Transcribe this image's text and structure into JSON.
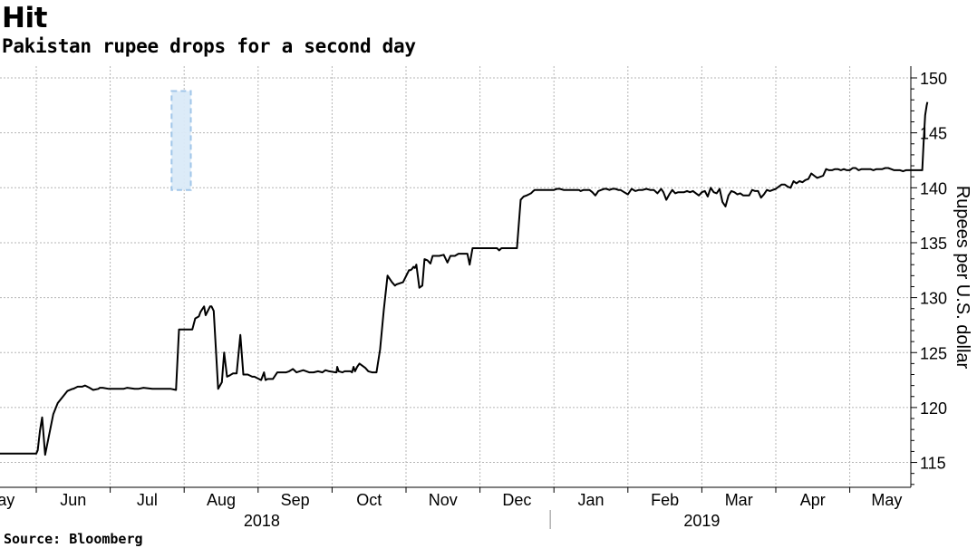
{
  "title": "Hit",
  "subtitle": "Pakistan rupee drops for a second day",
  "source": "Source: Bloomberg",
  "chart_data": {
    "type": "line",
    "title": "Hit",
    "subtitle": "Pakistan rupee drops for a second day",
    "ylabel": "Rupees per U.S. dollar",
    "xlabel": "",
    "ylim": [
      112.5,
      151
    ],
    "yticks": [
      115,
      120,
      125,
      130,
      135,
      140,
      145,
      150
    ],
    "grid": true,
    "month_labels": [
      "May",
      "Jun",
      "Jul",
      "Aug",
      "Sep",
      "Oct",
      "Nov",
      "Dec",
      "Jan",
      "Feb",
      "Mar",
      "Apr",
      "May"
    ],
    "year_labels": [
      "2018",
      "2019"
    ],
    "highlight": {
      "x": [
        1.83,
        2.09
      ],
      "y": [
        139.8,
        148.8
      ],
      "color": "#dbeaf8"
    },
    "line_color": "#000000",
    "x": [
      -1.34,
      -1.22,
      -1.13,
      -0.89,
      -0.73,
      -0.66,
      -0.58,
      -0.55,
      -0.52,
      -0.45,
      -0.38,
      -0.25,
      -0.13,
      -0.06,
      0.0,
      0.02,
      0.05,
      0.08,
      0.12,
      0.23,
      0.29,
      0.42,
      0.49,
      0.5,
      0.53,
      0.56,
      0.62,
      0.66,
      0.72,
      0.77,
      0.84,
      0.86,
      0.9,
      0.98,
      1.06,
      1.13,
      1.18,
      1.23,
      1.33,
      1.38,
      1.45,
      1.57,
      1.64,
      1.82,
      1.89,
      1.93,
      2.11,
      2.15,
      2.2,
      2.22,
      2.24,
      2.27,
      2.29,
      2.35,
      2.37,
      2.4,
      2.46,
      2.51,
      2.54,
      2.58,
      2.61,
      2.66,
      2.71,
      2.76,
      2.8,
      2.83,
      2.86,
      2.92,
      2.95,
      3.04,
      3.08,
      3.1,
      3.13,
      3.2,
      3.26,
      3.32,
      3.35,
      3.38,
      3.42,
      3.47,
      3.52,
      3.61,
      3.69,
      3.75,
      3.81,
      3.87,
      3.91,
      3.96,
      4.05,
      4.06,
      4.07,
      4.09,
      4.14,
      4.17,
      4.2,
      4.25,
      4.27,
      4.29,
      4.31,
      4.34,
      4.37,
      4.41,
      4.45,
      4.49,
      4.54,
      4.6,
      4.65,
      4.7,
      4.75,
      4.81,
      4.85,
      4.87,
      4.96,
      5.04,
      5.06,
      5.08,
      5.1,
      5.12,
      5.14,
      5.18,
      5.22,
      5.25,
      5.29,
      5.33,
      5.36,
      5.39,
      5.45,
      5.51,
      5.56,
      5.6,
      5.66,
      5.71,
      5.75,
      5.79,
      5.83,
      5.86,
      5.9,
      5.95,
      6.0,
      6.05,
      6.1,
      6.15,
      6.2,
      6.23,
      6.26,
      6.29,
      6.32,
      6.36,
      6.39,
      6.42,
      6.46,
      6.5,
      6.55,
      6.59,
      6.63,
      6.66,
      6.69,
      6.72,
      6.74,
      6.76,
      6.79,
      6.82,
      6.85,
      6.88,
      6.91,
      6.94,
      6.97,
      7.0,
      7.04,
      7.08,
      7.13,
      7.18,
      7.22,
      7.26,
      7.3,
      7.34,
      7.36,
      7.4,
      7.44,
      7.48,
      7.52,
      7.56,
      7.6,
      7.64,
      7.68,
      7.71,
      7.75,
      7.79,
      7.83,
      7.87,
      7.9,
      7.95,
      8.0,
      8.05,
      8.1,
      8.15,
      8.2,
      8.25,
      8.3,
      8.35,
      8.4,
      8.45,
      8.48,
      8.52,
      8.56,
      8.6,
      8.64,
      8.68,
      8.72,
      8.76,
      8.8,
      8.84,
      8.88,
      8.92,
      8.96,
      9.0,
      9.04,
      9.08,
      9.12,
      9.16,
      9.2,
      9.24,
      9.28,
      9.32,
      9.36,
      9.4,
      9.44,
      9.48,
      9.52,
      9.56,
      9.6,
      9.64,
      9.68,
      9.72,
      9.76,
      9.8,
      9.84,
      9.88,
      9.92,
      9.96,
      10.0,
      10.04,
      10.08,
      10.12,
      10.16,
      10.2,
      10.24,
      10.28,
      10.32,
      10.36,
      10.4,
      10.44,
      10.48,
      10.52,
      10.56,
      10.6,
      10.64,
      10.68,
      10.72,
      10.76,
      10.8,
      10.84,
      10.88,
      10.92,
      10.96,
      11.0,
      11.04,
      11.08,
      11.12,
      11.16,
      11.2,
      11.24,
      11.28,
      11.32,
      11.36,
      11.4,
      11.44,
      11.48,
      11.52,
      11.56,
      11.6,
      11.64,
      11.68,
      11.72,
      11.76,
      11.8,
      11.84,
      11.88,
      11.92,
      11.94,
      11.96,
      11.98,
      12.0,
      12.02,
      12.04,
      12.05
    ],
    "y": [
      115.8,
      115.8,
      115.7,
      115.8,
      115.7,
      115.8,
      115.7,
      115.8,
      115.8,
      115.8,
      115.8,
      115.8,
      115.8,
      115.8,
      115.8,
      116.1,
      117.9,
      119.1,
      115.7,
      119.4,
      120.4,
      121.5,
      121.7,
      121.7,
      121.8,
      121.9,
      121.9,
      122.0,
      121.8,
      121.6,
      121.7,
      121.8,
      121.8,
      121.7,
      121.7,
      121.7,
      121.7,
      121.8,
      121.7,
      121.7,
      121.8,
      121.7,
      121.7,
      121.7,
      121.6,
      127.1,
      127.1,
      128.1,
      128.3,
      128.7,
      128.9,
      129.2,
      128.4,
      129.2,
      129.2,
      128.8,
      121.7,
      122.3,
      125.0,
      122.8,
      122.9,
      123.1,
      123.1,
      126.6,
      123.0,
      123.0,
      123.0,
      122.8,
      122.8,
      122.5,
      123.2,
      122.5,
      122.6,
      122.6,
      123.2,
      123.2,
      123.2,
      123.2,
      123.3,
      123.5,
      123.2,
      123.4,
      123.2,
      123.2,
      123.3,
      123.2,
      123.4,
      123.3,
      123.2,
      123.2,
      123.7,
      123.3,
      123.2,
      123.3,
      123.3,
      123.3,
      123.2,
      123.7,
      123.3,
      123.7,
      124.0,
      123.8,
      123.6,
      123.3,
      123.2,
      123.2,
      125.3,
      128.9,
      132.0,
      131.4,
      131.1,
      131.2,
      131.4,
      132.5,
      132.5,
      132.6,
      132.8,
      132.7,
      133.0,
      130.9,
      131.1,
      133.5,
      133.4,
      133.1,
      133.8,
      133.8,
      133.8,
      133.9,
      133.2,
      133.8,
      133.8,
      134.0,
      134.0,
      134.0,
      134.0,
      133.0,
      134.5,
      134.5,
      134.5,
      134.5,
      134.5,
      134.5,
      134.5,
      134.5,
      134.3,
      134.5,
      134.5,
      134.5,
      134.5,
      134.5,
      134.5,
      134.5,
      138.9,
      139.2,
      139.3,
      139.4,
      139.5,
      139.7,
      139.8,
      139.8,
      139.8,
      139.8,
      139.8,
      139.8,
      139.8,
      139.8,
      139.8,
      139.8,
      139.9,
      139.9,
      139.8,
      139.8,
      139.8,
      139.8,
      139.8,
      139.8,
      139.7,
      139.8,
      139.8,
      139.8,
      139.6,
      139.3,
      139.7,
      139.8,
      139.9,
      139.9,
      139.8,
      139.9,
      139.9,
      139.8,
      139.8,
      139.6,
      139.4,
      139.9,
      139.7,
      139.8,
      139.8,
      139.9,
      139.8,
      139.8,
      139.5,
      139.9,
      139.6,
      138.9,
      139.4,
      139.8,
      139.5,
      139.6,
      139.6,
      139.6,
      139.7,
      139.6,
      139.7,
      139.5,
      139.3,
      139.6,
      139.7,
      139.2,
      140.0,
      139.6,
      139.5,
      139.9,
      138.7,
      138.3,
      139.3,
      139.7,
      139.6,
      139.4,
      139.5,
      139.3,
      139.3,
      139.3,
      139.8,
      139.7,
      139.7,
      139.1,
      139.4,
      139.8,
      139.7,
      139.8,
      139.9,
      140.1,
      140.3,
      140.3,
      140.1,
      140.0,
      140.6,
      140.4,
      140.6,
      140.5,
      140.7,
      140.8,
      141.3,
      141.1,
      140.9,
      141.0,
      141.1,
      141.7,
      141.6,
      141.6,
      141.7,
      141.7,
      141.6,
      141.7,
      141.6,
      141.6,
      141.8,
      141.8,
      141.6,
      141.7,
      141.7,
      141.7,
      141.7,
      141.6,
      141.7,
      141.7,
      141.7,
      141.8,
      141.8,
      141.7,
      141.6,
      141.6,
      141.6,
      141.5,
      141.6,
      141.6,
      141.6,
      141.6,
      141.6,
      141.6,
      141.6,
      141.6,
      144.3,
      146.6,
      147.5,
      147.8
    ]
  }
}
